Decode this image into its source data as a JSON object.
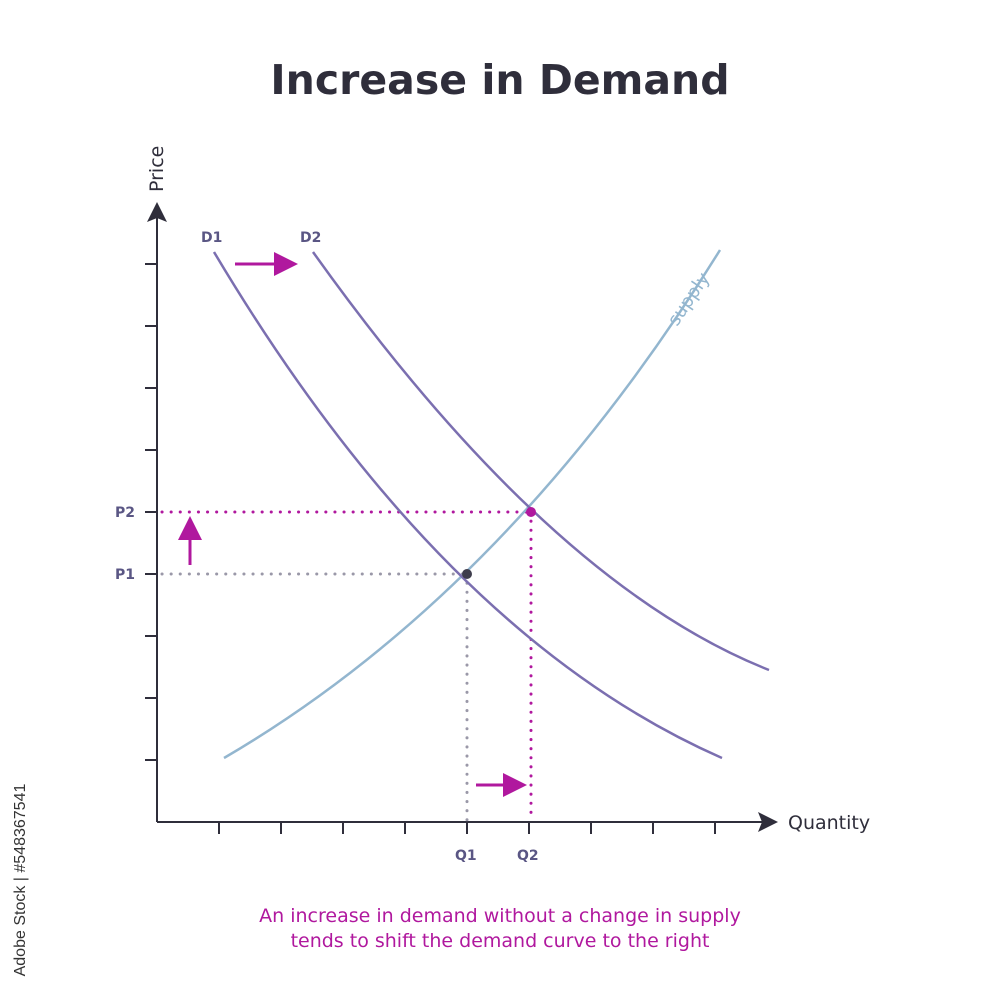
{
  "title": "Increase in Demand",
  "caption_line1": "An increase in demand without a change in supply",
  "caption_line2": "tends to shift the demand curve to the right",
  "watermark": "Adobe Stock | #548367541",
  "colors": {
    "demand": "#7b6fb0",
    "supply": "#93b6cf",
    "highlight": "#b0189e",
    "original": "#9a98a8",
    "axis": "#2f2e3b"
  },
  "chart_data": {
    "type": "line",
    "xlabel": "Quantity",
    "ylabel": "Price",
    "curves": [
      {
        "name": "D1"
      },
      {
        "name": "D2"
      },
      {
        "name": "supply"
      }
    ],
    "x_tick_labels": [
      "Q1",
      "Q2"
    ],
    "y_tick_labels": [
      "P2",
      "P1"
    ],
    "equilibria": [
      {
        "x": "Q1",
        "y": "P1",
        "curve": "D1"
      },
      {
        "x": "Q2",
        "y": "P2",
        "curve": "D2"
      }
    ]
  }
}
